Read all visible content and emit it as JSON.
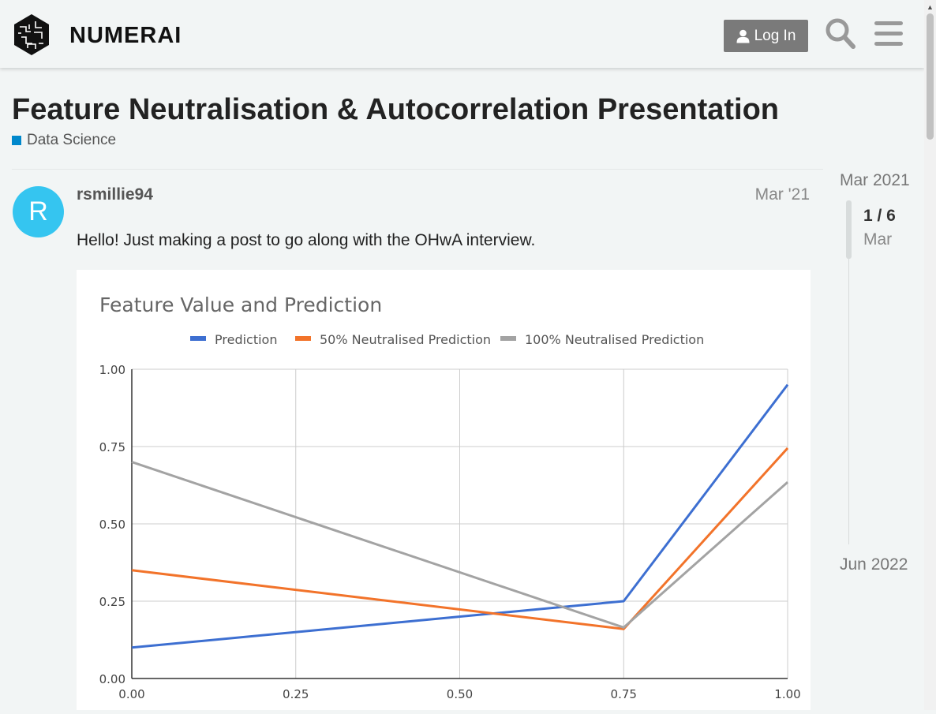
{
  "header": {
    "logo_text": "NUMERAI",
    "login_label": "Log In"
  },
  "topic": {
    "title": "Feature Neutralisation & Autocorrelation Presentation",
    "category": "Data Science",
    "category_color": "#0088cc"
  },
  "post": {
    "avatar_letter": "R",
    "avatar_color": "#35c5f0",
    "username": "rsmillie94",
    "date": "Mar '21",
    "text": "Hello! Just making a post to go along with the OHwA interview."
  },
  "timeline": {
    "start": "Mar 2021",
    "position": "1 / 6",
    "month": "Mar",
    "end": "Jun 2022"
  },
  "chart_data": {
    "type": "line",
    "title": "Feature Value and Prediction",
    "x": [
      0.0,
      0.25,
      0.5,
      0.75,
      1.0
    ],
    "x_ticks": [
      "0.00",
      "0.25",
      "0.50",
      "0.75",
      "1.00"
    ],
    "y_ticks": [
      "0.00",
      "0.25",
      "0.50",
      "0.75",
      "1.00"
    ],
    "xlim": [
      0,
      1
    ],
    "ylim": [
      0,
      1
    ],
    "grid": true,
    "legend_position": "top",
    "series": [
      {
        "name": "Prediction",
        "color": "#3d6fd1",
        "points": [
          [
            0.0,
            0.1
          ],
          [
            0.75,
            0.25
          ],
          [
            1.0,
            0.95
          ]
        ]
      },
      {
        "name": "50% Neutralised Prediction",
        "color": "#f2732a",
        "points": [
          [
            0.0,
            0.35
          ],
          [
            0.75,
            0.16
          ],
          [
            1.0,
            0.745
          ]
        ]
      },
      {
        "name": "100% Neutralised Prediction",
        "color": "#a3a3a3",
        "points": [
          [
            0.0,
            0.7
          ],
          [
            0.75,
            0.165
          ],
          [
            1.0,
            0.635
          ]
        ]
      }
    ]
  }
}
